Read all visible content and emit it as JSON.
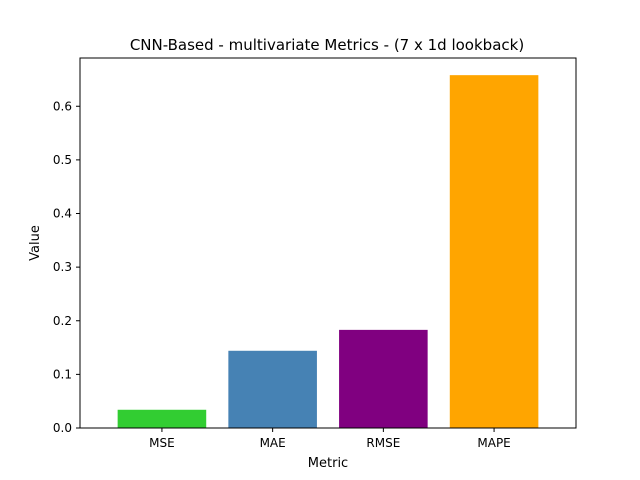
{
  "chart_data": {
    "type": "bar",
    "title": "CNN-Based - multivariate Metrics - (7 x 1d lookback)",
    "xlabel": "Metric",
    "ylabel": "Value",
    "categories": [
      "MSE",
      "MAE",
      "RMSE",
      "MAPE"
    ],
    "values": [
      0.034,
      0.144,
      0.183,
      0.658
    ],
    "colors": [
      "#32cd32",
      "#4682b4",
      "#800080",
      "#ffa500"
    ],
    "ylim": [
      0,
      0.69
    ],
    "yticks": [
      0.0,
      0.1,
      0.2,
      0.3,
      0.4,
      0.5,
      0.6
    ],
    "ytick_labels": [
      "0.0",
      "0.1",
      "0.2",
      "0.3",
      "0.4",
      "0.5",
      "0.6"
    ],
    "grid": false,
    "legend": "none"
  }
}
